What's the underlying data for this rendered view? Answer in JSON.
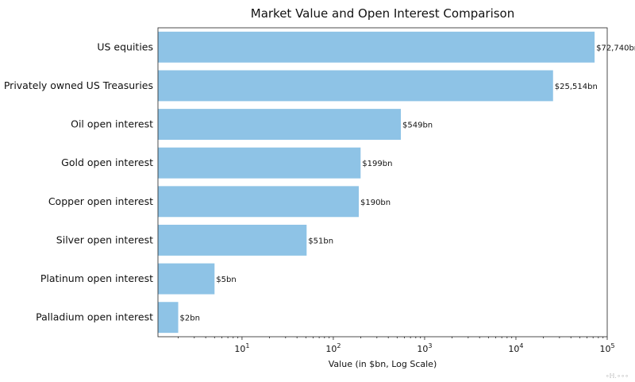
{
  "chart_data": {
    "type": "bar",
    "orientation": "horizontal",
    "title": "Market Value and Open Interest Comparison",
    "xlabel": "Value (in $bn, Log Scale)",
    "ylabel": "",
    "x_scale": "log",
    "xlim": [
      1.2,
      100000
    ],
    "x_ticks": [
      {
        "value": 10,
        "base": "10",
        "exp": "1"
      },
      {
        "value": 100,
        "base": "10",
        "exp": "2"
      },
      {
        "value": 1000,
        "base": "10",
        "exp": "3"
      },
      {
        "value": 10000,
        "base": "10",
        "exp": "4"
      },
      {
        "value": 100000,
        "base": "10",
        "exp": "5"
      }
    ],
    "grid": false,
    "bar_color": "#8ec3e6",
    "categories": [
      "US equities",
      "Privately owned US Treasuries",
      "Oil open interest",
      "Gold open interest",
      "Copper open interest",
      "Silver open interest",
      "Platinum open interest",
      "Palladium open interest"
    ],
    "values": [
      72740,
      25514,
      549,
      199,
      190,
      51,
      5,
      2
    ],
    "value_labels": [
      "$72,740bn",
      "$25,514bn",
      "$549bn",
      "$199bn",
      "$190bn",
      "$51bn",
      "$5bn",
      "$2bn"
    ]
  },
  "watermark": "∘ℍ.∘∘∘"
}
